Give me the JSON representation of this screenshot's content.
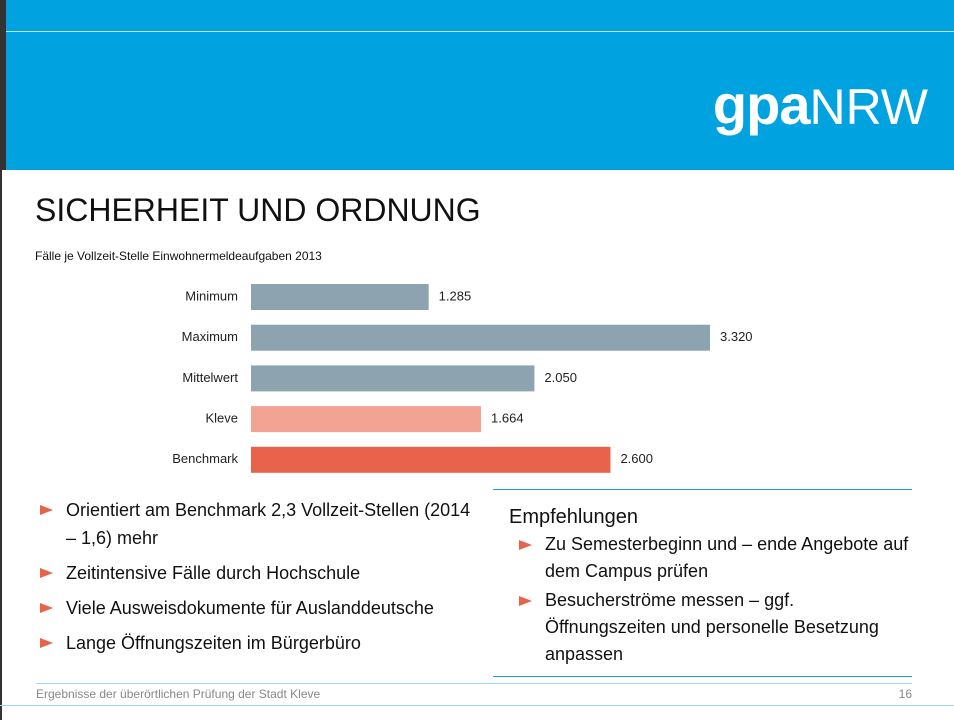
{
  "logo": {
    "bold": "gpa",
    "normal": "NRW"
  },
  "chart_data": {
    "type": "bar",
    "orientation": "horizontal",
    "title": "SICHERHEIT UND ORDNUNG",
    "subtitle": "Fälle je Vollzeit-Stelle Einwohnermeldeaufgaben 2013",
    "categories": [
      "Minimum",
      "Maximum",
      "Mittelwert",
      "Kleve",
      "Benchmark"
    ],
    "values": [
      1285,
      3320,
      2050,
      1664,
      2600
    ],
    "value_labels": [
      "1.285",
      "3.320",
      "2.050",
      "1.664",
      "2.600"
    ],
    "colors": [
      "#8ea3b0",
      "#8ea3b0",
      "#8ea3b0",
      "#f2a394",
      "#e8624c"
    ]
  },
  "bullets": [
    "Orientiert am Benchmark 2,3 Vollzeit-Stellen (2014 – 1,6) mehr",
    "Zeitintensive Fälle durch Hochschule",
    "Viele Ausweisdokumente für Ausland­deutsche",
    "Lange Öffnungszeiten im Bürgerbüro"
  ],
  "recommendations": {
    "title": "Empfehlungen",
    "items": [
      "Zu Semesterbeginn und – ende Angebote auf dem Campus prüfen",
      "Besucherströme messen – ggf. Öffnungszeiten und personelle Besetzung anpassen"
    ]
  },
  "footer": {
    "text": "Ergebnisse der überörtlichen Prüfung der Stadt Kleve",
    "page": "16"
  }
}
